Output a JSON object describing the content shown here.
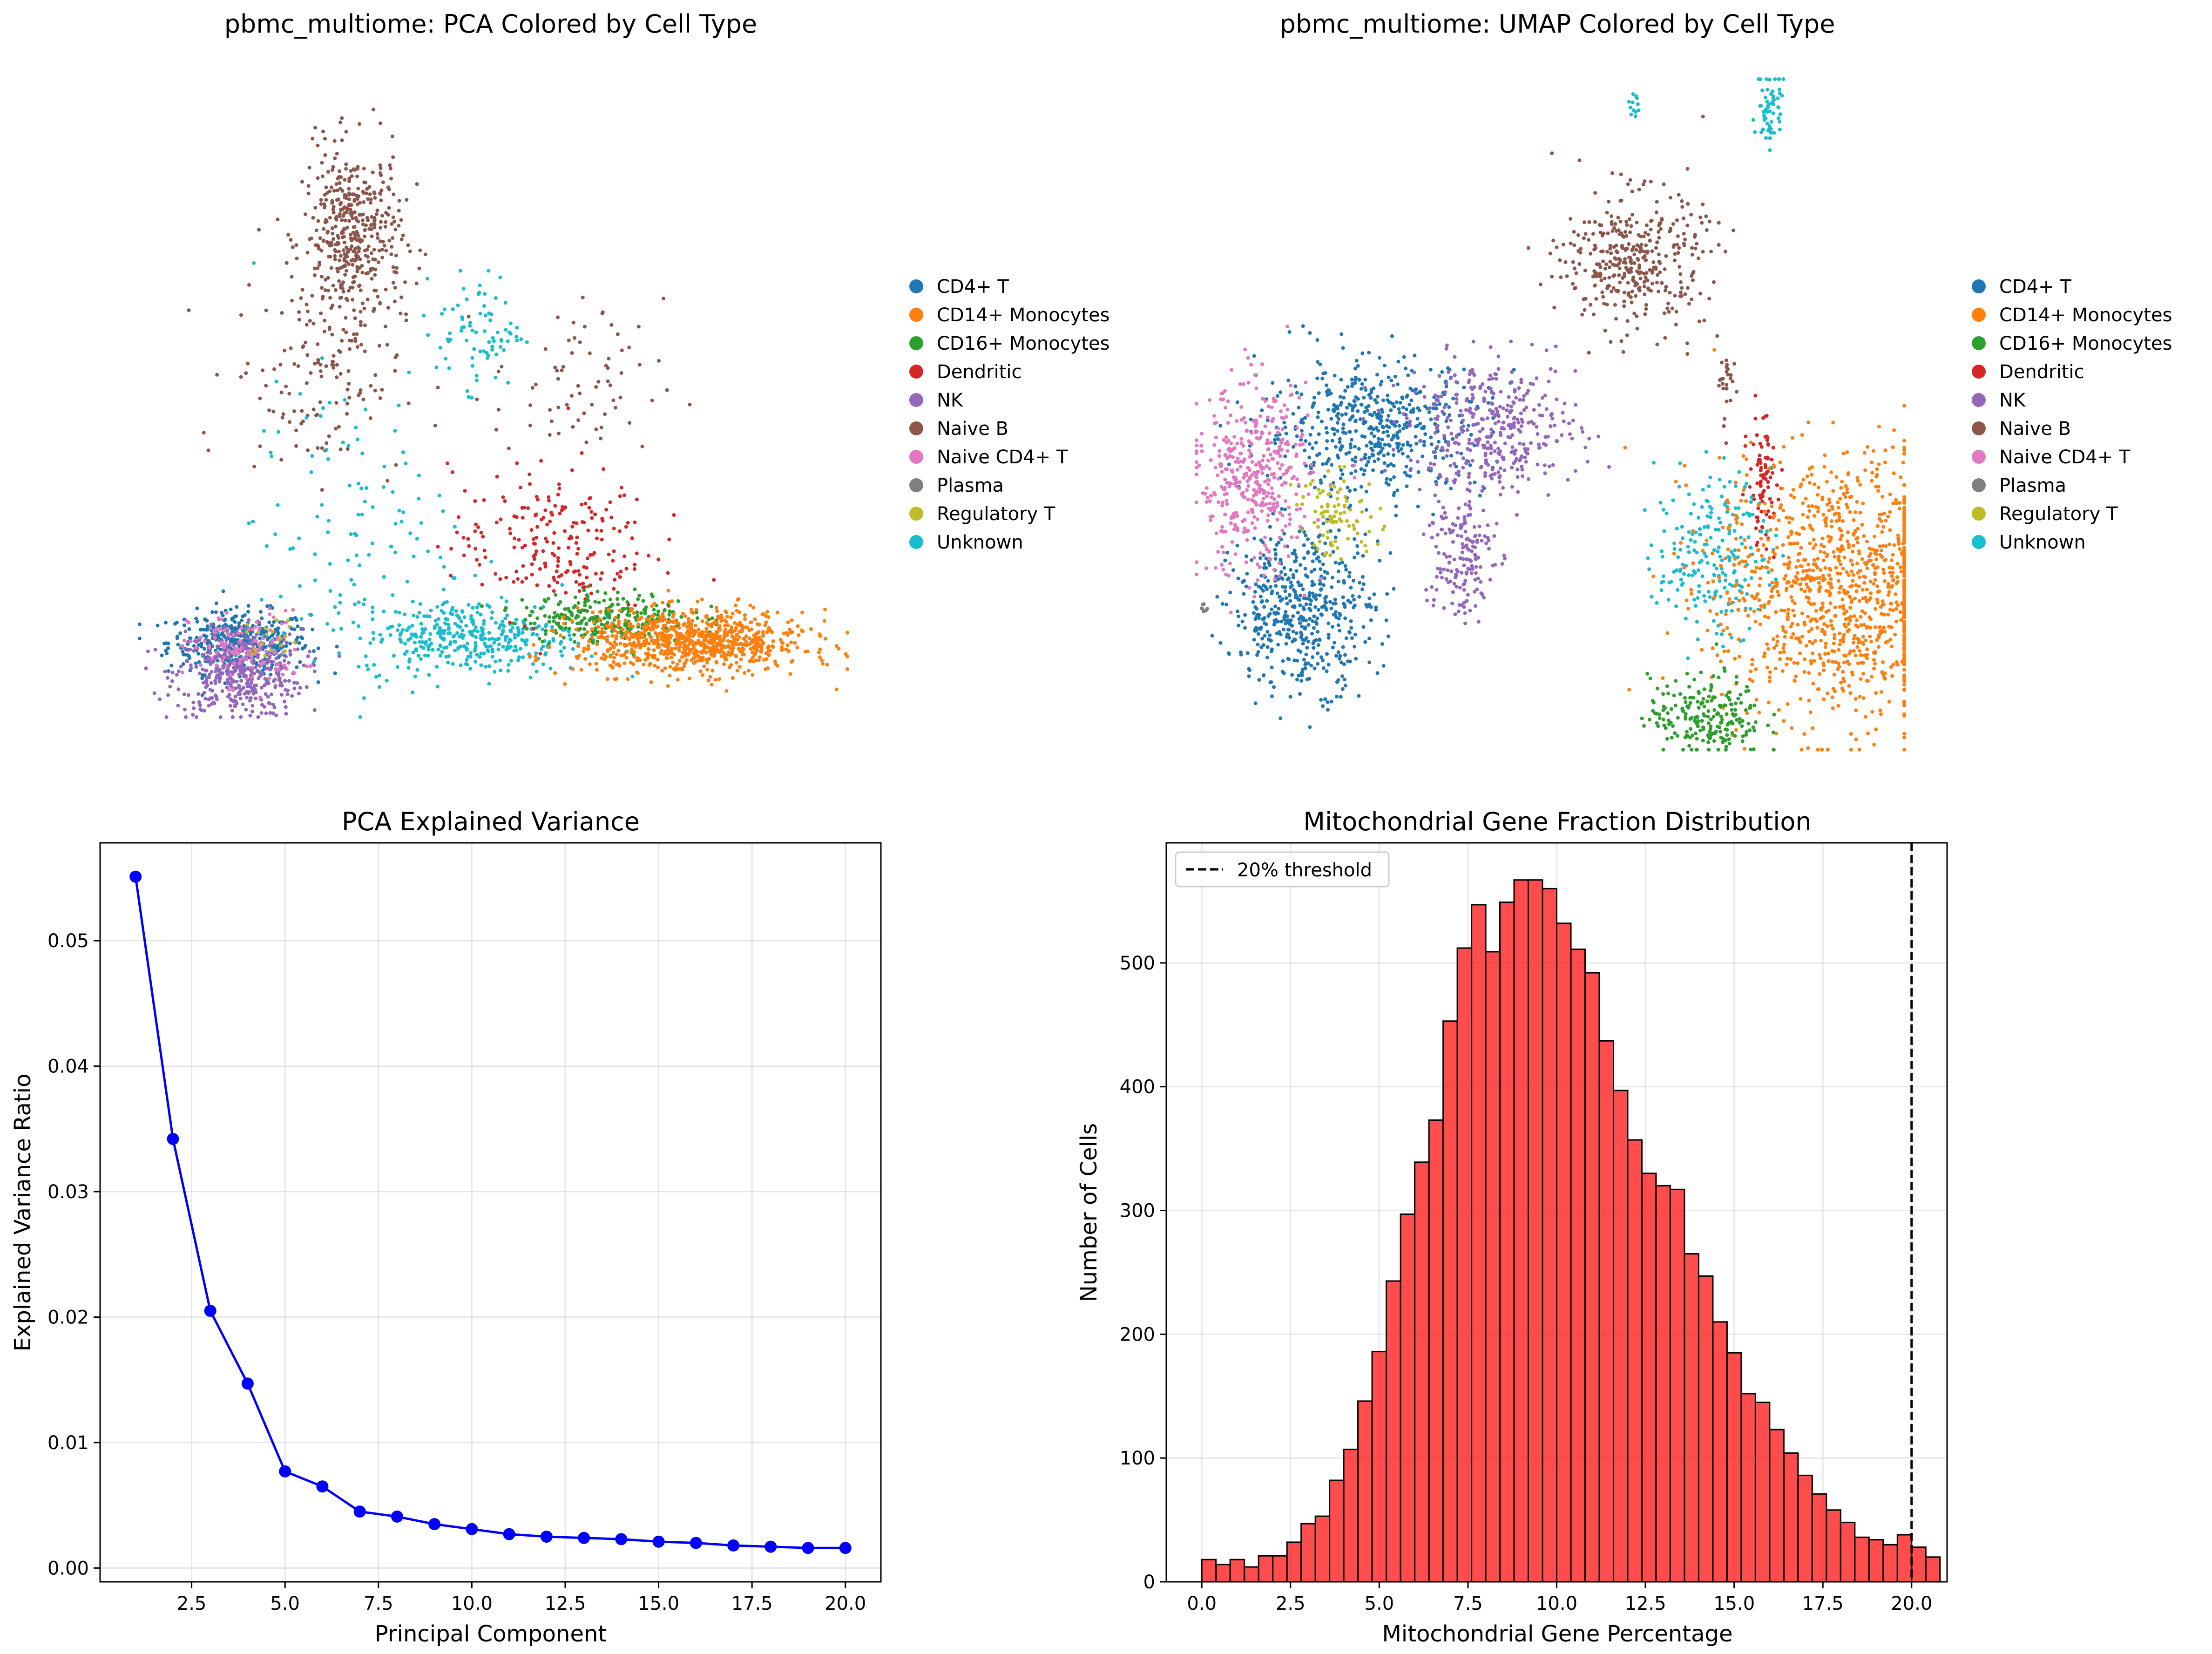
{
  "figure": {
    "background": "#ffffff"
  },
  "palette": {
    "CD4+ T": "#1f77b4",
    "CD14+ Monocytes": "#ff7f0e",
    "CD16+ Monocytes": "#2ca02c",
    "Dendritic": "#d62728",
    "NK": "#9467bd",
    "Naive B": "#8c564b",
    "Naive CD4+ T": "#e377c2",
    "Plasma": "#7f7f7f",
    "Regulatory T": "#bcbd22",
    "Unknown": "#17becf"
  },
  "chart_data": [
    {
      "id": "pca_scatter",
      "type": "scatter",
      "title": "pbmc_multiome: PCA Colored by Cell Type",
      "axes_visible": false,
      "legend_position": "right outside",
      "legend": [
        "CD4+ T",
        "CD14+ Monocytes",
        "CD16+ Monocytes",
        "Dendritic",
        "NK",
        "Naive B",
        "Naive CD4+ T",
        "Plasma",
        "Regulatory T",
        "Unknown"
      ],
      "clusters": [
        {
          "label": "CD4+ T",
          "center": [
            0.14,
            0.12
          ],
          "spread": [
            0.05,
            0.025
          ],
          "n": 400
        },
        {
          "label": "NK",
          "center": [
            0.14,
            0.07
          ],
          "spread": [
            0.045,
            0.035
          ],
          "n": 420
        },
        {
          "label": "Naive CD4+ T",
          "center": [
            0.15,
            0.11
          ],
          "spread": [
            0.04,
            0.03
          ],
          "n": 120
        },
        {
          "label": "Regulatory T",
          "center": [
            0.19,
            0.13
          ],
          "spread": [
            0.02,
            0.015
          ],
          "n": 20
        },
        {
          "label": "Naive B",
          "center": [
            0.3,
            0.77
          ],
          "spread": [
            0.035,
            0.07
          ],
          "n": 450
        },
        {
          "label": "Naive B",
          "center": [
            0.25,
            0.55
          ],
          "spread": [
            0.06,
            0.08
          ],
          "n": 130
        },
        {
          "label": "Naive B",
          "center": [
            0.62,
            0.53
          ],
          "spread": [
            0.06,
            0.07
          ],
          "n": 70
        },
        {
          "label": "Unknown",
          "center": [
            0.48,
            0.62
          ],
          "spread": [
            0.03,
            0.045
          ],
          "n": 80
        },
        {
          "label": "Unknown",
          "center": [
            0.47,
            0.13
          ],
          "spread": [
            0.08,
            0.03
          ],
          "n": 380
        },
        {
          "label": "Unknown",
          "center": [
            0.3,
            0.3
          ],
          "spread": [
            0.07,
            0.12
          ],
          "n": 110
        },
        {
          "label": "Dendritic",
          "center": [
            0.58,
            0.28
          ],
          "spread": [
            0.07,
            0.06
          ],
          "n": 220
        },
        {
          "label": "CD16+ Monocytes",
          "center": [
            0.66,
            0.16
          ],
          "spread": [
            0.06,
            0.02
          ],
          "n": 260
        },
        {
          "label": "CD14+ Monocytes",
          "center": [
            0.78,
            0.12
          ],
          "spread": [
            0.08,
            0.025
          ],
          "n": 850
        }
      ]
    },
    {
      "id": "umap_scatter",
      "type": "scatter",
      "title": "pbmc_multiome: UMAP Colored by Cell Type",
      "axes_visible": false,
      "legend_position": "right outside",
      "legend": [
        "CD4+ T",
        "CD14+ Monocytes",
        "CD16+ Monocytes",
        "Dendritic",
        "NK",
        "Naive B",
        "Naive CD4+ T",
        "Plasma",
        "Regulatory T",
        "Unknown"
      ],
      "clusters": [
        {
          "label": "CD4+ T",
          "center": [
            0.15,
            0.21
          ],
          "spread": [
            0.05,
            0.06
          ],
          "n": 500
        },
        {
          "label": "CD4+ T",
          "center": [
            0.25,
            0.48
          ],
          "spread": [
            0.08,
            0.05
          ],
          "n": 520
        },
        {
          "label": "Naive CD4+ T",
          "center": [
            0.08,
            0.4
          ],
          "spread": [
            0.04,
            0.07
          ],
          "n": 420
        },
        {
          "label": "Regulatory T",
          "center": [
            0.2,
            0.35
          ],
          "spread": [
            0.03,
            0.03
          ],
          "n": 90
        },
        {
          "label": "NK",
          "center": [
            0.42,
            0.48
          ],
          "spread": [
            0.06,
            0.05
          ],
          "n": 380
        },
        {
          "label": "NK",
          "center": [
            0.37,
            0.29
          ],
          "spread": [
            0.025,
            0.05
          ],
          "n": 160
        },
        {
          "label": "Naive B",
          "center": [
            0.62,
            0.73
          ],
          "spread": [
            0.05,
            0.05
          ],
          "n": 380
        },
        {
          "label": "Naive B",
          "center": [
            0.75,
            0.54
          ],
          "spread": [
            0.01,
            0.03
          ],
          "n": 25
        },
        {
          "label": "Dendritic",
          "center": [
            0.8,
            0.4
          ],
          "spread": [
            0.01,
            0.05
          ],
          "n": 90
        },
        {
          "label": "Unknown",
          "center": [
            0.73,
            0.29
          ],
          "spread": [
            0.04,
            0.06
          ],
          "n": 220
        },
        {
          "label": "Unknown",
          "center": [
            0.81,
            0.96
          ],
          "spread": [
            0.01,
            0.03
          ],
          "n": 60
        },
        {
          "label": "Unknown",
          "center": [
            0.62,
            0.96
          ],
          "spread": [
            0.004,
            0.01
          ],
          "n": 12
        },
        {
          "label": "CD14+ Monocytes",
          "center": [
            0.91,
            0.24
          ],
          "spread": [
            0.09,
            0.1
          ],
          "n": 1100
        },
        {
          "label": "CD16+ Monocytes",
          "center": [
            0.72,
            0.05
          ],
          "spread": [
            0.04,
            0.03
          ],
          "n": 220
        },
        {
          "label": "Plasma",
          "center": [
            0.01,
            0.21
          ],
          "spread": [
            0.003,
            0.005
          ],
          "n": 8
        }
      ]
    },
    {
      "id": "pca_variance",
      "type": "line",
      "title": "PCA Explained Variance",
      "xlabel": "Principal Component",
      "ylabel": "Explained Variance Ratio",
      "xlim": [
        0.05,
        20.95
      ],
      "ylim": [
        -0.0011,
        0.0578
      ],
      "xticks": [
        2.5,
        5.0,
        7.5,
        10.0,
        12.5,
        15.0,
        17.5,
        20.0
      ],
      "xtick_labels": [
        "2.5",
        "5.0",
        "7.5",
        "10.0",
        "12.5",
        "15.0",
        "17.5",
        "20.0"
      ],
      "yticks": [
        0.0,
        0.01,
        0.02,
        0.03,
        0.04,
        0.05
      ],
      "ytick_labels": [
        "0.00",
        "0.01",
        "0.02",
        "0.03",
        "0.04",
        "0.05"
      ],
      "grid": true,
      "color": "#0000ff",
      "x": [
        1,
        2,
        3,
        4,
        5,
        6,
        7,
        8,
        9,
        10,
        11,
        12,
        13,
        14,
        15,
        16,
        17,
        18,
        19,
        20
      ],
      "y": [
        0.0551,
        0.0342,
        0.0205,
        0.0147,
        0.0077,
        0.0065,
        0.0045,
        0.0041,
        0.0035,
        0.0031,
        0.0027,
        0.0025,
        0.0024,
        0.0023,
        0.0021,
        0.002,
        0.0018,
        0.0017,
        0.0016,
        0.0016
      ]
    },
    {
      "id": "mito_hist",
      "type": "bar",
      "title": "Mitochondrial Gene Fraction Distribution",
      "xlabel": "Mitochondrial Gene Percentage",
      "ylabel": "Number of Cells",
      "xlim": [
        -1.0,
        21.0
      ],
      "ylim": [
        0,
        597
      ],
      "xticks": [
        0.0,
        2.5,
        5.0,
        7.5,
        10.0,
        12.5,
        15.0,
        17.5,
        20.0
      ],
      "xtick_labels": [
        "0.0",
        "2.5",
        "5.0",
        "7.5",
        "10.0",
        "12.5",
        "15.0",
        "17.5",
        "20.0"
      ],
      "yticks": [
        0,
        100,
        200,
        300,
        400,
        500
      ],
      "ytick_labels": [
        "0",
        "100",
        "200",
        "300",
        "400",
        "500"
      ],
      "grid": true,
      "bar_color": "#ff0000",
      "bar_alpha": 0.7,
      "edge_color": "#000000",
      "bin_start": 0.0,
      "bin_width": 0.4,
      "values": [
        18,
        14,
        18,
        12,
        21,
        21,
        32,
        47,
        53,
        82,
        107,
        146,
        186,
        243,
        297,
        339,
        373,
        453,
        512,
        547,
        509,
        549,
        567,
        567,
        560,
        532,
        511,
        492,
        437,
        397,
        357,
        330,
        320,
        317,
        265,
        247,
        210,
        185,
        152,
        145,
        123,
        104,
        86,
        71,
        58,
        48,
        36,
        34,
        30,
        38,
        28,
        20
      ],
      "threshold": {
        "value": 20.0,
        "label": "20% threshold",
        "color": "#000000",
        "style": "dashed"
      },
      "legend_position": "top-left"
    }
  ]
}
